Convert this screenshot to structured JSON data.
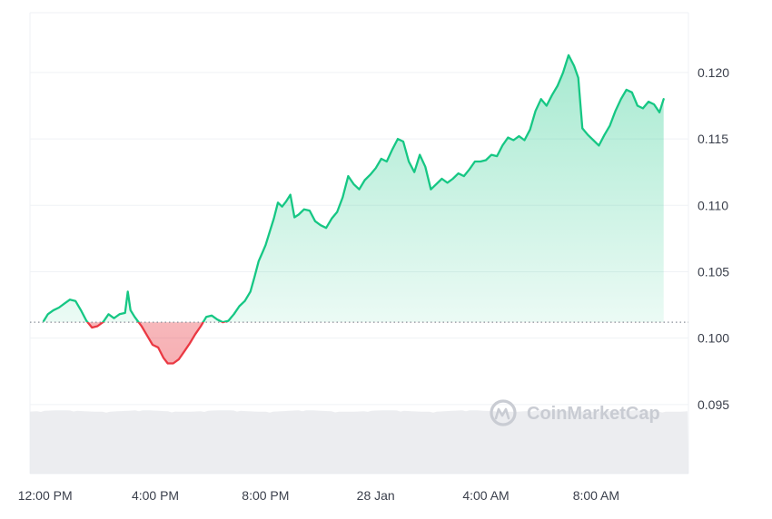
{
  "chart_data": {
    "type": "area",
    "title": "",
    "xlabel": "",
    "ylabel": "",
    "baseline": 0.1012,
    "ylim": [
      0.0898,
      0.1245
    ],
    "grid": true,
    "legend": "none",
    "y_ticks": [
      {
        "value": 0.095,
        "label": "0.095"
      },
      {
        "value": 0.1,
        "label": "0.100"
      },
      {
        "value": 0.105,
        "label": "0.105"
      },
      {
        "value": 0.11,
        "label": "0.110"
      },
      {
        "value": 0.115,
        "label": "0.115"
      },
      {
        "value": 0.12,
        "label": "0.120"
      }
    ],
    "x_ticks": [
      {
        "hour": 0,
        "label": "12:00 PM"
      },
      {
        "hour": 4,
        "label": "4:00 PM"
      },
      {
        "hour": 8,
        "label": "8:00 PM"
      },
      {
        "hour": 12,
        "label": "28 Jan"
      },
      {
        "hour": 16,
        "label": "4:00 AM"
      },
      {
        "hour": 20,
        "label": "8:00 AM"
      }
    ],
    "x_range_hours": [
      -0.55,
      23.35
    ],
    "series": [
      {
        "values": [
          [
            -0.05,
            0.1013
          ],
          [
            0.1,
            0.1018
          ],
          [
            0.3,
            0.1021
          ],
          [
            0.5,
            0.1023
          ],
          [
            0.7,
            0.1026
          ],
          [
            0.9,
            0.1029
          ],
          [
            1.1,
            0.1028
          ],
          [
            1.3,
            0.1021
          ],
          [
            1.5,
            0.1013
          ],
          [
            1.7,
            0.1008
          ],
          [
            1.9,
            0.1009
          ],
          [
            2.1,
            0.1012
          ],
          [
            2.3,
            0.1018
          ],
          [
            2.5,
            0.1015
          ],
          [
            2.7,
            0.1018
          ],
          [
            2.9,
            0.1019
          ],
          [
            3.0,
            0.1035
          ],
          [
            3.1,
            0.1021
          ],
          [
            3.25,
            0.1016
          ],
          [
            3.5,
            0.1009
          ],
          [
            3.7,
            0.1002
          ],
          [
            3.9,
            0.0995
          ],
          [
            4.1,
            0.0993
          ],
          [
            4.3,
            0.0985
          ],
          [
            4.45,
            0.0981
          ],
          [
            4.65,
            0.0981
          ],
          [
            4.85,
            0.0984
          ],
          [
            5.05,
            0.099
          ],
          [
            5.25,
            0.0996
          ],
          [
            5.45,
            0.1003
          ],
          [
            5.65,
            0.1009
          ],
          [
            5.85,
            0.1016
          ],
          [
            6.05,
            0.1017
          ],
          [
            6.25,
            0.1014
          ],
          [
            6.45,
            0.1012
          ],
          [
            6.65,
            0.1013
          ],
          [
            6.85,
            0.1018
          ],
          [
            7.05,
            0.1024
          ],
          [
            7.25,
            0.1028
          ],
          [
            7.45,
            0.1035
          ],
          [
            7.6,
            0.1046
          ],
          [
            7.75,
            0.1058
          ],
          [
            7.9,
            0.1065
          ],
          [
            8.0,
            0.107
          ],
          [
            8.15,
            0.108
          ],
          [
            8.3,
            0.109
          ],
          [
            8.45,
            0.1102
          ],
          [
            8.6,
            0.1099
          ],
          [
            8.75,
            0.1103
          ],
          [
            8.9,
            0.1108
          ],
          [
            9.05,
            0.1091
          ],
          [
            9.2,
            0.1093
          ],
          [
            9.4,
            0.1097
          ],
          [
            9.6,
            0.1096
          ],
          [
            9.8,
            0.1088
          ],
          [
            10.0,
            0.1085
          ],
          [
            10.2,
            0.1083
          ],
          [
            10.4,
            0.109
          ],
          [
            10.6,
            0.1095
          ],
          [
            10.8,
            0.1106
          ],
          [
            11.0,
            0.1122
          ],
          [
            11.2,
            0.1116
          ],
          [
            11.4,
            0.1112
          ],
          [
            11.6,
            0.1119
          ],
          [
            11.8,
            0.1123
          ],
          [
            12.0,
            0.1128
          ],
          [
            12.2,
            0.1135
          ],
          [
            12.4,
            0.1133
          ],
          [
            12.6,
            0.1142
          ],
          [
            12.8,
            0.115
          ],
          [
            13.0,
            0.1148
          ],
          [
            13.2,
            0.1133
          ],
          [
            13.4,
            0.1125
          ],
          [
            13.6,
            0.1138
          ],
          [
            13.8,
            0.1129
          ],
          [
            14.0,
            0.1112
          ],
          [
            14.2,
            0.1116
          ],
          [
            14.4,
            0.112
          ],
          [
            14.6,
            0.1117
          ],
          [
            14.8,
            0.112
          ],
          [
            15.0,
            0.1124
          ],
          [
            15.2,
            0.1122
          ],
          [
            15.4,
            0.1127
          ],
          [
            15.6,
            0.1133
          ],
          [
            15.8,
            0.1133
          ],
          [
            16.0,
            0.1134
          ],
          [
            16.2,
            0.1138
          ],
          [
            16.4,
            0.1137
          ],
          [
            16.6,
            0.1145
          ],
          [
            16.8,
            0.1151
          ],
          [
            17.0,
            0.1149
          ],
          [
            17.2,
            0.1152
          ],
          [
            17.4,
            0.1149
          ],
          [
            17.6,
            0.1157
          ],
          [
            17.8,
            0.1171
          ],
          [
            18.0,
            0.118
          ],
          [
            18.2,
            0.1175
          ],
          [
            18.4,
            0.1183
          ],
          [
            18.6,
            0.119
          ],
          [
            18.8,
            0.12
          ],
          [
            19.0,
            0.1213
          ],
          [
            19.2,
            0.1205
          ],
          [
            19.35,
            0.1196
          ],
          [
            19.5,
            0.1158
          ],
          [
            19.7,
            0.1153
          ],
          [
            19.9,
            0.1149
          ],
          [
            20.1,
            0.1145
          ],
          [
            20.3,
            0.1153
          ],
          [
            20.5,
            0.116
          ],
          [
            20.7,
            0.1171
          ],
          [
            20.9,
            0.118
          ],
          [
            21.1,
            0.1187
          ],
          [
            21.3,
            0.1185
          ],
          [
            21.5,
            0.1175
          ],
          [
            21.7,
            0.1173
          ],
          [
            21.9,
            0.1178
          ],
          [
            22.1,
            0.1176
          ],
          [
            22.3,
            0.117
          ],
          [
            22.45,
            0.118
          ]
        ]
      }
    ],
    "colors": {
      "up_line": "#16c784",
      "down_line": "#ea3943",
      "up_fill": "#16c784",
      "down_fill": "#ea3943",
      "grid": "#eff2f5",
      "baseline": "#8a8f99",
      "volume": "#e5e7eb"
    }
  },
  "watermark": {
    "icon": "coinmarketcap-logo-icon",
    "text": "CoinMarketCap"
  }
}
